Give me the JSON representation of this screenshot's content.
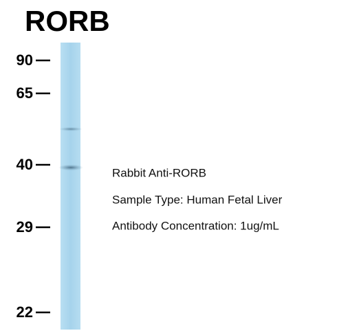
{
  "title": "RORB",
  "markers": [
    90,
    65,
    40,
    29,
    22
  ],
  "annotations": [
    "Rabbit Anti-RORB",
    "Sample Type: Human Fetal Liver",
    "Antibody Concentration: 1ug/mL"
  ]
}
